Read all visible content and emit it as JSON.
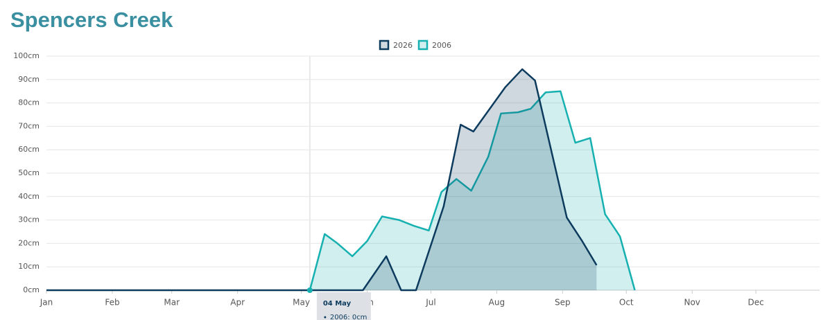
{
  "chart_data": {
    "type": "area",
    "title": "Spencers Creek",
    "xlim": [
      0,
      364
    ],
    "xticks": [
      {
        "value": 0,
        "label": "Jan"
      },
      {
        "value": 31,
        "label": "Feb"
      },
      {
        "value": 59,
        "label": "Mar"
      },
      {
        "value": 90,
        "label": "Apr"
      },
      {
        "value": 120,
        "label": "May"
      },
      {
        "value": 151,
        "label": "Jun"
      },
      {
        "value": 181,
        "label": "Jul"
      },
      {
        "value": 212,
        "label": "Aug"
      },
      {
        "value": 243,
        "label": "Sep"
      },
      {
        "value": 273,
        "label": "Oct"
      },
      {
        "value": 304,
        "label": "Nov"
      },
      {
        "value": 334,
        "label": "Dec"
      }
    ],
    "ylim": [
      0,
      100
    ],
    "yticks": [
      {
        "value": 0,
        "label": "0cm"
      },
      {
        "value": 10,
        "label": "10cm"
      },
      {
        "value": 20,
        "label": "20cm"
      },
      {
        "value": 30,
        "label": "30cm"
      },
      {
        "value": 40,
        "label": "40cm"
      },
      {
        "value": 50,
        "label": "50cm"
      },
      {
        "value": 60,
        "label": "60cm"
      },
      {
        "value": 70,
        "label": "70cm"
      },
      {
        "value": 80,
        "label": "80cm"
      },
      {
        "value": 90,
        "label": "90cm"
      },
      {
        "value": 100,
        "label": "100cm"
      }
    ],
    "grid": true,
    "series": [
      {
        "name": "2026",
        "color": "#0d3b5e",
        "x": [
          0,
          124,
          149,
          160,
          167,
          174,
          187,
          195,
          201,
          216,
          224,
          230,
          245,
          252,
          259
        ],
        "values": [
          0,
          0,
          0,
          14.5,
          0,
          0,
          35.8,
          70.7,
          67.8,
          86.7,
          94.4,
          89.6,
          31,
          21.3,
          10.7
        ]
      },
      {
        "name": "2006",
        "color": "#17b0b0",
        "x": [
          124,
          131,
          137,
          144,
          151,
          158,
          166,
          173,
          180,
          186,
          193,
          200,
          208,
          214,
          222,
          228,
          235,
          242,
          249,
          256,
          263,
          270,
          277
        ],
        "values": [
          0,
          24,
          20,
          14.5,
          21,
          31.5,
          30,
          27.5,
          25.5,
          42,
          47.5,
          42.5,
          57,
          75.5,
          76,
          77.5,
          84.5,
          85,
          63,
          65,
          32.5,
          23,
          0
        ]
      }
    ],
    "tooltip": {
      "x": 124,
      "date": "04 May",
      "text": "2006: 0cm"
    }
  }
}
